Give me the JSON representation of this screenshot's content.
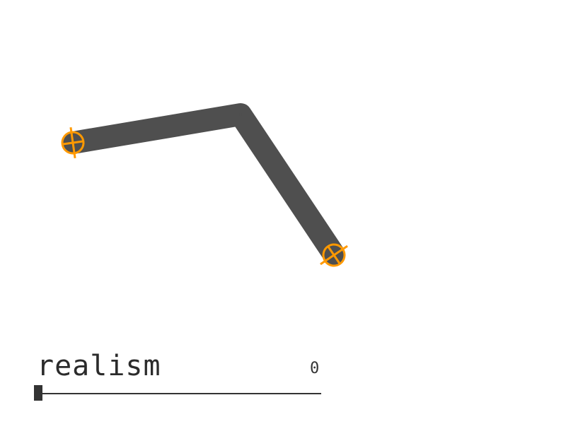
{
  "arm": {
    "limb_color": "#4f4f4f",
    "handle_color": "#ff9900",
    "handle_icon": "crosshair-icon",
    "joint_icon": "elbow-joint"
  },
  "slider": {
    "label": "realism",
    "value": "0",
    "level": 0
  }
}
